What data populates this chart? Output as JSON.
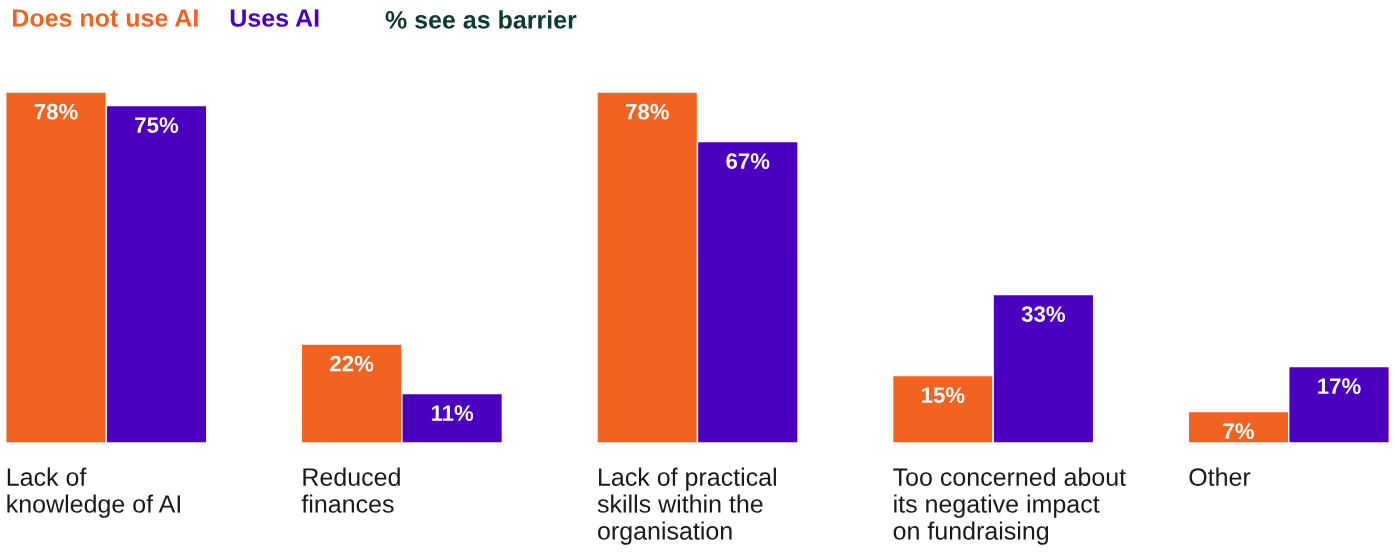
{
  "chart_data": {
    "type": "bar",
    "title": "% see as barrier",
    "categories": [
      "Lack of\nknowledge of AI",
      "Reduced\nfinances",
      "Lack of practical\nskills within the\norganisation",
      "Too concerned about\nits negative impact\non fundraising",
      "Other"
    ],
    "series": [
      {
        "name": "Does not use AI",
        "color": "#f26322",
        "values": [
          78,
          22,
          78,
          15,
          7
        ],
        "value_labels": [
          "78%",
          "22%",
          "78%",
          "15%",
          "7%"
        ]
      },
      {
        "name": "Uses AI",
        "color": "#4b00c0",
        "values": [
          75,
          11,
          67,
          33,
          17
        ],
        "value_labels": [
          "75%",
          "11%",
          "67%",
          "33%",
          "17%"
        ]
      }
    ],
    "legend": "top left"
  }
}
